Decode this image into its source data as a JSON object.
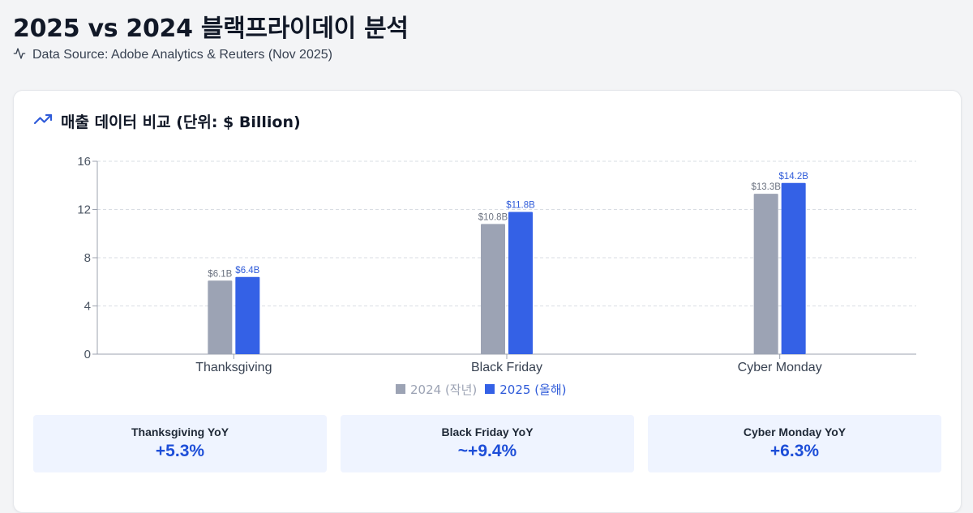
{
  "page": {
    "title": "2025 vs 2024 블랙프라이데이 분석",
    "subtitle": "Data Source: Adobe Analytics & Reuters (Nov 2025)",
    "subtitle_icon": "activity-icon"
  },
  "card": {
    "title": "매출 데이터 비교 (단위: $ Billion)",
    "title_icon": "trending-up-icon"
  },
  "legend": {
    "series_2024": "2024 (작년)",
    "series_2025": "2025 (올해)"
  },
  "colors": {
    "series_2024": "#9ca3b4",
    "series_2025": "#3461e6",
    "label_2024": "#6b7280",
    "label_2025": "#2f5bd9",
    "accent": "#1d4ed8"
  },
  "chart_data": {
    "type": "bar",
    "title": "매출 데이터 비교 (단위: $ Billion)",
    "categories": [
      "Thanksgiving",
      "Black Friday",
      "Cyber Monday"
    ],
    "series": [
      {
        "name": "2024 (작년)",
        "values": [
          6.1,
          10.8,
          13.3
        ],
        "labels": [
          "$6.1B",
          "$10.8B",
          "$13.3B"
        ]
      },
      {
        "name": "2025 (올해)",
        "values": [
          6.4,
          11.8,
          14.2
        ],
        "labels": [
          "$6.4B",
          "$11.8B",
          "$14.2B"
        ]
      }
    ],
    "ylim": [
      0,
      16
    ],
    "yticks": [
      0,
      4,
      8,
      12,
      16
    ],
    "xlabel": "",
    "ylabel": "",
    "grid": true,
    "legend_position": "bottom-center"
  },
  "yoy": [
    {
      "label": "Thanksgiving YoY",
      "value": "+5.3%"
    },
    {
      "label": "Black Friday YoY",
      "value": "~+9.4%"
    },
    {
      "label": "Cyber Monday YoY",
      "value": "+6.3%"
    }
  ]
}
